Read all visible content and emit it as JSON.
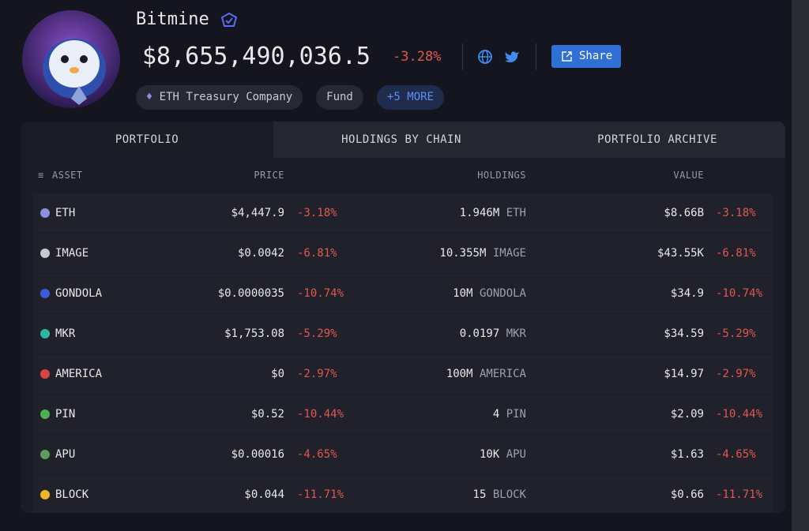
{
  "header": {
    "name": "Bitmine",
    "value": "$8,655,490,036.5",
    "change": "-3.28%",
    "share": "Share",
    "tags": [
      "ETH Treasury Company",
      "Fund",
      "+5 MORE"
    ]
  },
  "tabs": [
    "PORTFOLIO",
    "HOLDINGS BY CHAIN",
    "PORTFOLIO ARCHIVE"
  ],
  "table": {
    "columns": [
      "ASSET",
      "PRICE",
      "HOLDINGS",
      "VALUE"
    ],
    "rows": [
      [
        "ETH",
        "$4,447.9",
        "-3.18%",
        "1.946M",
        "ETH",
        "$8.66B",
        "-3.18%"
      ],
      [
        "IMAGE",
        "$0.0042",
        "-6.81%",
        "10.355M",
        "IMAGE",
        "$43.55K",
        "-6.81%"
      ],
      [
        "GONDOLA",
        "$0.0000035",
        "-10.74%",
        "10M",
        "GONDOLA",
        "$34.9",
        "-10.74%"
      ],
      [
        "MKR",
        "$1,753.08",
        "-5.29%",
        "0.0197",
        "MKR",
        "$34.59",
        "-5.29%"
      ],
      [
        "AMERICA",
        "$0",
        "-2.97%",
        "100M",
        "AMERICA",
        "$14.97",
        "-2.97%"
      ],
      [
        "PIN",
        "$0.52",
        "-10.44%",
        "4",
        "PIN",
        "$2.09",
        "-10.44%"
      ],
      [
        "APU",
        "$0.00016",
        "-4.65%",
        "10K",
        "APU",
        "$1.63",
        "-4.65%"
      ],
      [
        "BLOCK",
        "$0.044",
        "-11.71%",
        "15",
        "BLOCK",
        "$0.66",
        "-11.71%"
      ]
    ]
  }
}
